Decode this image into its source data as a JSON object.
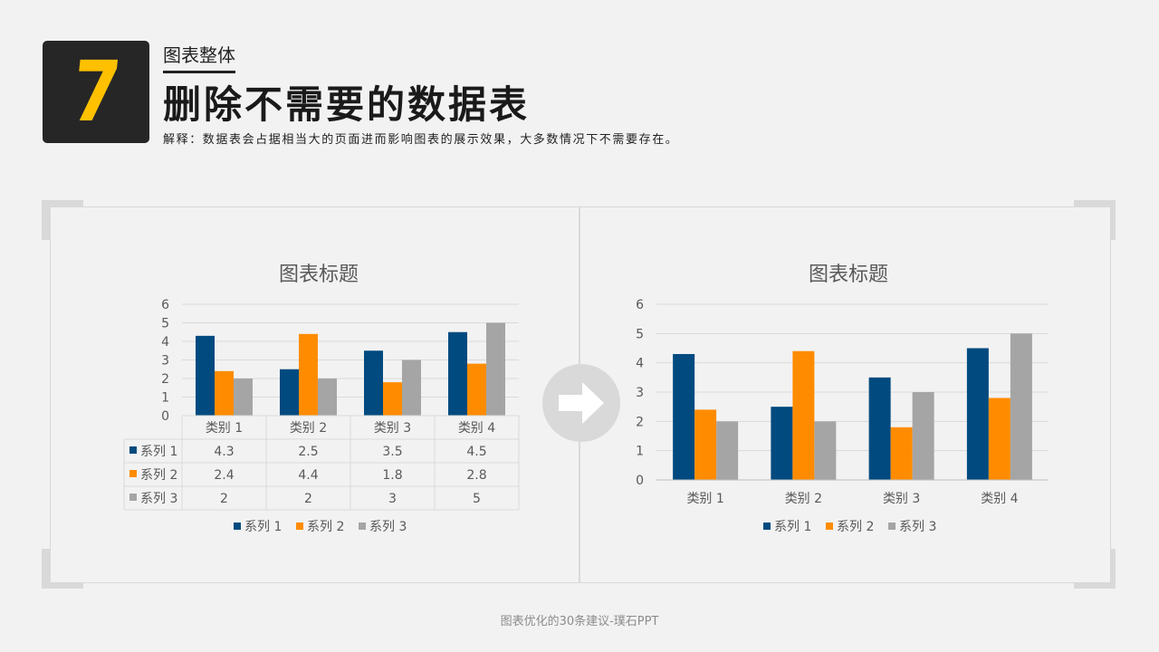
{
  "header": {
    "number": "7",
    "category": "图表整体",
    "title": "删除不需要的数据表",
    "explanation": "解释：数据表会占据相当大的页面进而影响图表的展示效果，大多数情况下不需要存在。"
  },
  "colors": {
    "accent": "#ffc000",
    "series1": "#004a7f",
    "series2": "#ff8c00",
    "series3": "#a5a5a5"
  },
  "icons": {
    "arrow": "right-arrow-icon"
  },
  "chart_data": [
    {
      "type": "bar",
      "title": "图表标题",
      "categories": [
        "类别 1",
        "类别 2",
        "类别 3",
        "类别 4"
      ],
      "series": [
        {
          "name": "系列 1",
          "values": [
            4.3,
            2.5,
            3.5,
            4.5
          ]
        },
        {
          "name": "系列 2",
          "values": [
            2.4,
            4.4,
            1.8,
            2.8
          ]
        },
        {
          "name": "系列 3",
          "values": [
            2,
            2,
            3,
            5
          ]
        }
      ],
      "ylim": [
        0,
        6
      ],
      "yticks": [
        "0",
        "1",
        "2",
        "3",
        "4",
        "5",
        "6"
      ],
      "grid": true,
      "legend": "bottom",
      "data_table": {
        "rows": [
          {
            "name": "系列 1",
            "cells": [
              "4.3",
              "2.5",
              "3.5",
              "4.5"
            ]
          },
          {
            "name": "系列 2",
            "cells": [
              "2.4",
              "4.4",
              "1.8",
              "2.8"
            ]
          },
          {
            "name": "系列 3",
            "cells": [
              "2",
              "2",
              "3",
              "5"
            ]
          }
        ]
      }
    },
    {
      "type": "bar",
      "title": "图表标题",
      "categories": [
        "类别 1",
        "类别 2",
        "类别 3",
        "类别 4"
      ],
      "series": [
        {
          "name": "系列 1",
          "values": [
            4.3,
            2.5,
            3.5,
            4.5
          ]
        },
        {
          "name": "系列 2",
          "values": [
            2.4,
            4.4,
            1.8,
            2.8
          ]
        },
        {
          "name": "系列 3",
          "values": [
            2,
            2,
            3,
            5
          ]
        }
      ],
      "ylim": [
        0,
        6
      ],
      "yticks": [
        "0",
        "1",
        "2",
        "3",
        "4",
        "5",
        "6"
      ],
      "grid": true,
      "legend": "bottom"
    }
  ],
  "footer": "图表优化的30条建议-璞石PPT"
}
